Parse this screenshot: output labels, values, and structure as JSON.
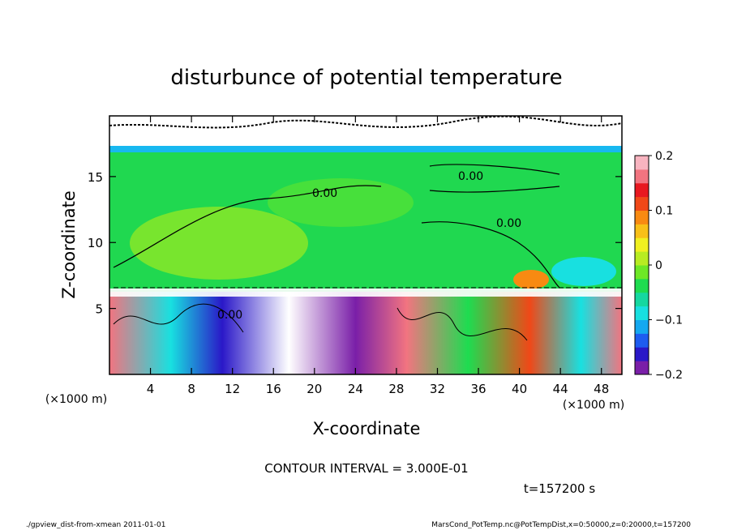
{
  "chart_data": {
    "type": "heatmap",
    "title": "disturbunce of potential temperature",
    "xlabel": "X-coordinate",
    "ylabel": "Z-coordinate",
    "x_unit": "(×1000 m)",
    "y_unit": "(×1000 m)",
    "xlim": [
      0,
      50
    ],
    "ylim": [
      0,
      19.6
    ],
    "x_ticks": [
      4,
      8,
      12,
      16,
      20,
      24,
      28,
      32,
      36,
      40,
      44,
      48
    ],
    "y_ticks": [
      5,
      10,
      15
    ],
    "colorbar": {
      "range": [
        -0.2,
        0.2
      ],
      "tick_values": [
        0.2,
        0.1,
        0,
        -0.1,
        -0.2
      ],
      "tick_labels": [
        "0.2",
        "0.1",
        "0",
        "−0.1",
        "−0.2"
      ],
      "colors": [
        "#7a1fa8",
        "#2a18c8",
        "#1d5cf0",
        "#14a8f0",
        "#18e0e0",
        "#15d8a0",
        "#1edc50",
        "#6ee826",
        "#b8ec22",
        "#f0f020",
        "#f8c018",
        "#f88a12",
        "#f04818",
        "#e81820",
        "#f27480",
        "#f8b4c0"
      ]
    },
    "contour_labels": [
      "0.00",
      "0.00",
      "0.00",
      "0.00"
    ],
    "contour_interval_text": "CONTOUR INTERVAL = 3.000E-01",
    "time_text": "t=157200 s"
  },
  "footer": {
    "left": "./gpview_dist-from-xmean  2011-01-01",
    "right": "MarsCond_PotTemp.nc@PotTempDist,x=0:50000,z=0:20000,t=157200"
  }
}
